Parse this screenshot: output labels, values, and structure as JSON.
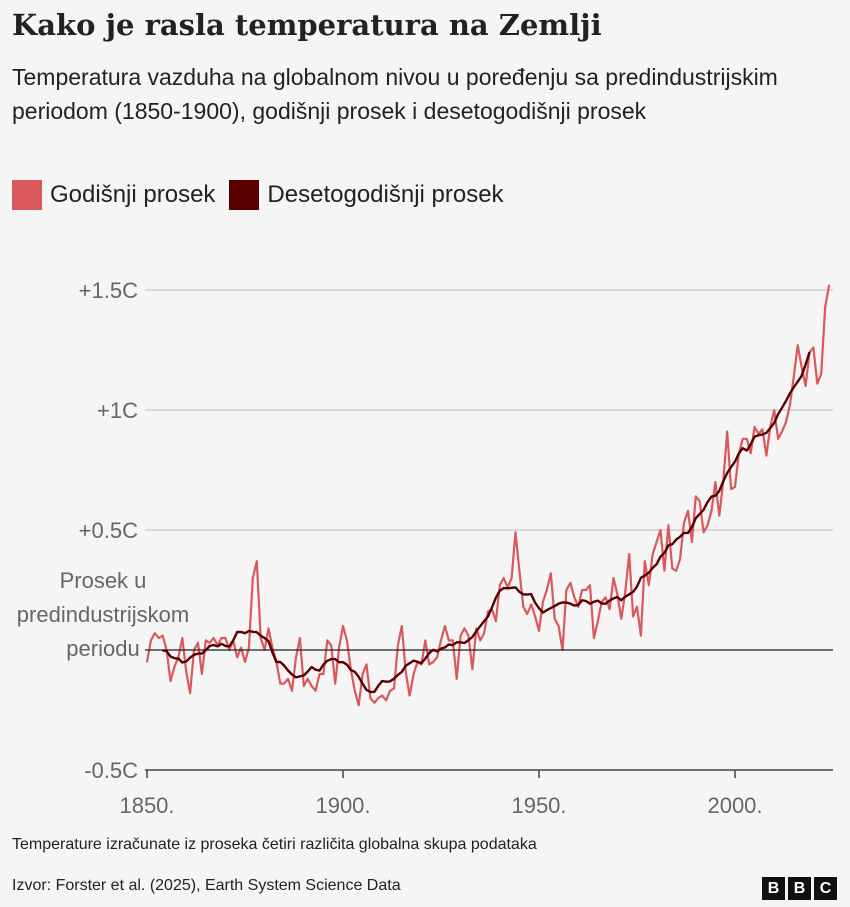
{
  "title": "Kako je rasla temperatura na Zemlji",
  "subtitle": "Temperatura vazduha na globalnom nivou u poređenju sa predindustrijskim periodom (1850-1900), godišnji prosek i desetogodišnji prosek",
  "footnote": "Temperature izračunate iz proseka četiri različita globalna skupa podataka",
  "source": "Izvor: Forster et al. (2025), Earth System Science Data",
  "logo": [
    "B",
    "B",
    "C"
  ],
  "chart_data": {
    "type": "line",
    "title": "Kako je rasla temperatura na Zemlji",
    "xlabel": "",
    "ylabel": "",
    "xlim": [
      1850,
      2024
    ],
    "ylim": [
      -0.5,
      1.5
    ],
    "x_ticks": [
      {
        "value": 1850,
        "label": "1850."
      },
      {
        "value": 1900,
        "label": "1900."
      },
      {
        "value": 1950,
        "label": "1950."
      },
      {
        "value": 2000,
        "label": "2000."
      }
    ],
    "y_ticks": [
      {
        "value": 1.5,
        "label": "+1.5C"
      },
      {
        "value": 1,
        "label": "+1C"
      },
      {
        "value": 0.5,
        "label": "+0.5C"
      },
      {
        "value": -0.5,
        "label": "-0.5C"
      }
    ],
    "baseline": {
      "value": 0,
      "label": [
        "Prosek u",
        "predindustrijskom",
        "periodu"
      ]
    },
    "grid": true,
    "legend_position": "top-left",
    "colors": {
      "annual": "#d9595c",
      "decadal": "#5a0000"
    },
    "x_start": 1850,
    "series": [
      {
        "name": "Godišnji prosek",
        "values": [
          -0.05,
          0.04,
          0.07,
          0.05,
          0.06,
          0.0,
          -0.13,
          -0.07,
          -0.03,
          0.05,
          -0.09,
          -0.18,
          0.0,
          0.03,
          -0.1,
          0.04,
          0.03,
          0.05,
          0.02,
          0.05,
          0.05,
          0.0,
          0.04,
          -0.03,
          0.01,
          -0.05,
          0.01,
          0.3,
          0.37,
          0.05,
          0.0,
          0.09,
          0.01,
          -0.05,
          -0.14,
          -0.14,
          -0.12,
          -0.17,
          -0.03,
          0.05,
          -0.15,
          -0.12,
          -0.15,
          -0.17,
          -0.1,
          -0.1,
          0.04,
          0.02,
          -0.14,
          0.01,
          0.1,
          0.04,
          -0.08,
          -0.17,
          -0.23,
          -0.1,
          -0.06,
          -0.2,
          -0.22,
          -0.2,
          -0.19,
          -0.21,
          -0.17,
          -0.16,
          0.02,
          0.1,
          -0.09,
          -0.19,
          -0.1,
          -0.05,
          -0.06,
          0.04,
          -0.06,
          -0.05,
          -0.03,
          0.04,
          0.1,
          0.04,
          0.04,
          -0.12,
          0.06,
          0.09,
          0.06,
          -0.08,
          0.09,
          0.04,
          0.07,
          0.16,
          0.17,
          0.12,
          0.27,
          0.3,
          0.26,
          0.3,
          0.49,
          0.33,
          0.18,
          0.15,
          0.19,
          0.14,
          0.08,
          0.2,
          0.25,
          0.32,
          0.13,
          0.1,
          0.0,
          0.25,
          0.28,
          0.22,
          0.18,
          0.25,
          0.25,
          0.27,
          0.05,
          0.12,
          0.2,
          0.22,
          0.17,
          0.3,
          0.23,
          0.13,
          0.24,
          0.4,
          0.14,
          0.18,
          0.06,
          0.37,
          0.27,
          0.4,
          0.45,
          0.5,
          0.33,
          0.52,
          0.34,
          0.33,
          0.38,
          0.53,
          0.58,
          0.45,
          0.64,
          0.62,
          0.49,
          0.52,
          0.58,
          0.7,
          0.56,
          0.7,
          0.91,
          0.67,
          0.68,
          0.82,
          0.88,
          0.88,
          0.82,
          0.93,
          0.9,
          0.92,
          0.81,
          0.93,
          1.0,
          0.88,
          0.91,
          0.95,
          1.02,
          1.14,
          1.27,
          1.18,
          1.1,
          1.24,
          1.26,
          1.11,
          1.15,
          1.43,
          1.52
        ]
      },
      {
        "name": "Desetogodišnji prosek",
        "values": []
      }
    ]
  }
}
